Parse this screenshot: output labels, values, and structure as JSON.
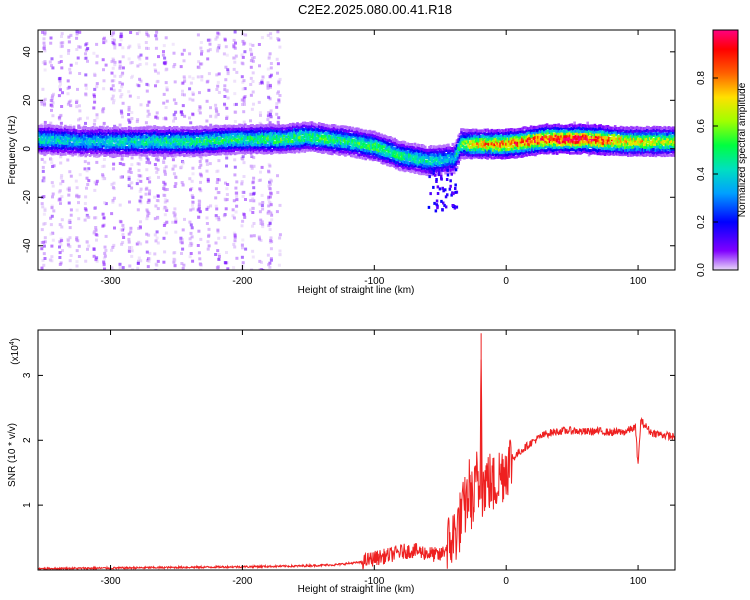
{
  "title": "C2E2.2025.080.00.41.R18",
  "chart_data": [
    {
      "type": "heatmap",
      "xlabel": "Height of straight line (km)",
      "ylabel": "Frequency (Hz)",
      "xlim": [
        -355,
        128
      ],
      "ylim": [
        -50,
        49
      ],
      "x_ticks": [
        -300,
        -200,
        -100,
        0,
        100
      ],
      "x_tick_labels": [
        "-300",
        "-200",
        "-100",
        "0",
        "100"
      ],
      "y_ticks": [
        -40,
        -20,
        0,
        20,
        40
      ],
      "y_tick_labels": [
        "-40",
        "-20",
        "0",
        "20",
        "40"
      ],
      "colorbar": {
        "label": "Normalized spectral amplitude",
        "range": [
          0,
          1
        ],
        "ticks": [
          0.0,
          0.2,
          0.4,
          0.6,
          0.8
        ],
        "tick_labels": [
          "0.0",
          "0.2",
          "0.4",
          "0.6",
          "0.8"
        ],
        "colormap": [
          "#c8a8e8",
          "#8000ff",
          "#0000ff",
          "#00c0ff",
          "#00ff80",
          "#80ff00",
          "#ffff00",
          "#ff8000",
          "#ff0000",
          "#ff0080"
        ]
      },
      "ridge": [
        {
          "x": -355,
          "f": 4,
          "amp": 0.45
        },
        {
          "x": -320,
          "f": 3,
          "amp": 0.4
        },
        {
          "x": -280,
          "f": 3,
          "amp": 0.45
        },
        {
          "x": -240,
          "f": 3,
          "amp": 0.5
        },
        {
          "x": -200,
          "f": 4,
          "amp": 0.5
        },
        {
          "x": -170,
          "f": 4,
          "amp": 0.55
        },
        {
          "x": -150,
          "f": 5,
          "amp": 0.55
        },
        {
          "x": -120,
          "f": 3,
          "amp": 0.5
        },
        {
          "x": -100,
          "f": 1,
          "amp": 0.55
        },
        {
          "x": -80,
          "f": -3,
          "amp": 0.5
        },
        {
          "x": -60,
          "f": -5,
          "amp": 0.45
        },
        {
          "x": -40,
          "f": -4,
          "amp": 0.4
        },
        {
          "x": -35,
          "f": 2,
          "amp": 0.6
        },
        {
          "x": -20,
          "f": 2,
          "amp": 0.8
        },
        {
          "x": 0,
          "f": 2,
          "amp": 0.85
        },
        {
          "x": 30,
          "f": 4,
          "amp": 0.95
        },
        {
          "x": 60,
          "f": 4,
          "amp": 1.0
        },
        {
          "x": 90,
          "f": 3,
          "amp": 0.75
        },
        {
          "x": 128,
          "f": 3,
          "amp": 0.65
        }
      ]
    },
    {
      "type": "line",
      "xlabel": "Height of straight line (km)",
      "ylabel": "SNR (10 * v/v)",
      "y_multiplier": "(x10",
      "y_multiplier_exp": "4",
      "y_multiplier_close": ")",
      "xlim": [
        -355,
        128
      ],
      "ylim": [
        0,
        3.7
      ],
      "x_ticks": [
        -300,
        -200,
        -100,
        0,
        100
      ],
      "x_tick_labels": [
        "-300",
        "-200",
        "-100",
        "0",
        "100"
      ],
      "y_ticks": [
        1,
        2,
        3
      ],
      "y_tick_labels": [
        "1",
        "2",
        "3"
      ],
      "color": "#ee2020",
      "series": [
        {
          "x": [
            -355,
            -300,
            -250,
            -200,
            -160,
            -130,
            -110,
            -100,
            -90,
            -80,
            -70,
            -60,
            -50,
            -45,
            -40,
            -35,
            -30,
            -28,
            -25,
            -22,
            -20,
            -19,
            -18,
            -15,
            -12,
            -10,
            -5,
            0,
            5,
            10,
            20,
            30,
            40,
            50,
            60,
            70,
            80,
            90,
            98,
            100,
            102,
            110,
            120,
            128
          ],
          "y": [
            0.02,
            0.03,
            0.04,
            0.05,
            0.06,
            0.08,
            0.12,
            0.18,
            0.22,
            0.28,
            0.3,
            0.26,
            0.22,
            0.35,
            0.5,
            0.75,
            1.05,
            1.25,
            1.0,
            1.45,
            1.15,
            3.65,
            1.25,
            1.4,
            1.35,
            1.3,
            1.45,
            1.6,
            1.72,
            1.82,
            1.98,
            2.1,
            2.14,
            2.15,
            2.13,
            2.14,
            2.12,
            2.13,
            2.2,
            1.6,
            2.3,
            2.12,
            2.08,
            2.05
          ]
        }
      ]
    }
  ]
}
